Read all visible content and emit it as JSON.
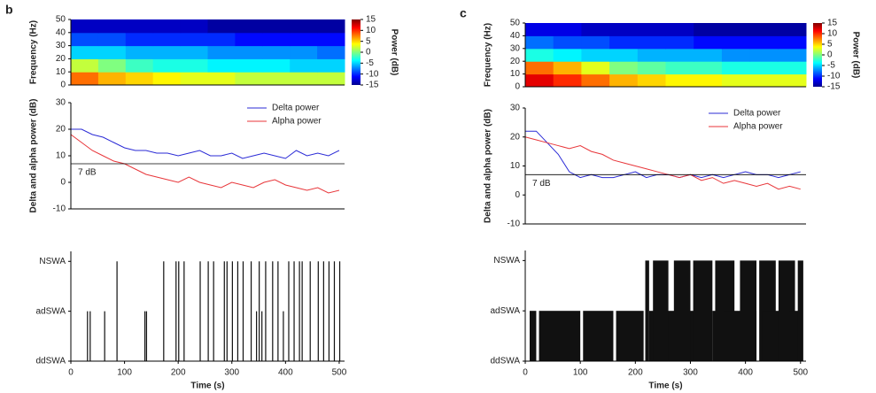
{
  "chart_data": [
    {
      "type": "heatmap",
      "panel": "b",
      "ylabel": "Frequency (Hz)",
      "x_bins": [
        0,
        51,
        102,
        153,
        204,
        255,
        306,
        357,
        408,
        459,
        510
      ],
      "y_bins": [
        0,
        10,
        20,
        30,
        40,
        50
      ],
      "values": [
        [
          8,
          6,
          5,
          4,
          3,
          3,
          2,
          2,
          2,
          2
        ],
        [
          2,
          0,
          -2,
          -3,
          -3,
          -4,
          -4,
          -4,
          -5,
          -5
        ],
        [
          -5,
          -5,
          -6,
          -6,
          -6,
          -7,
          -7,
          -7,
          -7,
          -8
        ],
        [
          -9,
          -9,
          -10,
          -10,
          -10,
          -10,
          -11,
          -11,
          -11,
          -11
        ],
        [
          -13,
          -13,
          -13,
          -13,
          -13,
          -14,
          -14,
          -14,
          -14,
          -14
        ]
      ],
      "xlim": [
        0,
        510
      ],
      "ylim": [
        0,
        50
      ],
      "yticks": [
        0,
        10,
        20,
        30,
        40,
        50
      ],
      "colorbar": {
        "label": "Power (dB)",
        "lim": [
          -15,
          15
        ],
        "ticks": [
          15,
          10,
          5,
          0,
          -5,
          -10,
          -15
        ]
      }
    },
    {
      "type": "line",
      "ylabel": "Delta and alpha power (dB)",
      "x": [
        0,
        20,
        40,
        60,
        80,
        100,
        120,
        140,
        160,
        180,
        200,
        220,
        240,
        260,
        280,
        300,
        320,
        340,
        360,
        380,
        400,
        420,
        440,
        460,
        480,
        500
      ],
      "series": [
        {
          "name": "Delta power",
          "color": "#2b2bd6",
          "values": [
            20,
            20,
            18,
            17,
            15,
            13,
            12,
            12,
            11,
            11,
            10,
            11,
            12,
            10,
            10,
            11,
            9,
            10,
            11,
            10,
            9,
            12,
            10,
            11,
            10,
            12
          ]
        },
        {
          "name": "Alpha power",
          "color": "#e8363a",
          "values": [
            18,
            15,
            12,
            10,
            8,
            7,
            5,
            3,
            2,
            1,
            0,
            2,
            0,
            -1,
            -2,
            0,
            -1,
            -2,
            0,
            1,
            -1,
            -2,
            -3,
            -2,
            -4,
            -3
          ]
        }
      ],
      "ref_line": {
        "value": 7,
        "label": "7 dB"
      },
      "xlim": [
        0,
        510
      ],
      "ylim": [
        -10,
        30
      ],
      "yticks": [
        -10,
        0,
        10,
        20,
        30
      ],
      "legend": "upper right"
    },
    {
      "type": "raster",
      "xlabel": "Time (s)",
      "starts": [
        30,
        35,
        62,
        85,
        137,
        140,
        172,
        195,
        200,
        210,
        240,
        255,
        265,
        285,
        290,
        300,
        310,
        320,
        335,
        345,
        350,
        355,
        362,
        375,
        385,
        395,
        405,
        415,
        425,
        430,
        445,
        460,
        470,
        480,
        490,
        500
      ],
      "ends": [
        32,
        37,
        64,
        87,
        139,
        142,
        174,
        197,
        202,
        212,
        242,
        257,
        267,
        287,
        292,
        302,
        312,
        322,
        337,
        347,
        352,
        357,
        364,
        377,
        387,
        397,
        407,
        417,
        427,
        432,
        447,
        462,
        472,
        482,
        492,
        502
      ],
      "values": [
        1,
        1,
        1,
        2,
        1,
        1,
        2,
        2,
        2,
        2,
        2,
        2,
        2,
        2,
        2,
        2,
        2,
        2,
        2,
        1,
        2,
        1,
        2,
        2,
        2,
        1,
        2,
        2,
        2,
        2,
        2,
        2,
        2,
        2,
        2,
        2
      ],
      "xlim": [
        0,
        510
      ],
      "xticks": [
        0,
        100,
        200,
        300,
        400,
        500
      ],
      "ylim": [
        0,
        2.2
      ],
      "yticks": [
        {
          "value": 0,
          "label": "ddSWA"
        },
        {
          "value": 1,
          "label": "adSWA"
        },
        {
          "value": 2,
          "label": "NSWA"
        }
      ]
    },
    {
      "type": "heatmap",
      "panel": "c",
      "ylabel": "Frequency (Hz)",
      "x_bins": [
        0,
        51,
        102,
        153,
        204,
        255,
        306,
        357,
        408,
        459,
        510
      ],
      "y_bins": [
        0,
        10,
        20,
        30,
        40,
        50
      ],
      "values": [
        [
          12,
          10,
          8,
          6,
          5,
          4,
          4,
          3,
          3,
          3
        ],
        [
          8,
          6,
          3,
          0,
          -1,
          -2,
          -2,
          -3,
          -3,
          -3
        ],
        [
          -3,
          -4,
          -5,
          -5,
          -6,
          -6,
          -6,
          -7,
          -7,
          -7
        ],
        [
          -8,
          -9,
          -9,
          -10,
          -10,
          -10,
          -11,
          -11,
          -11,
          -11
        ],
        [
          -12,
          -12,
          -13,
          -13,
          -13,
          -13,
          -14,
          -14,
          -14,
          -14
        ]
      ],
      "xlim": [
        0,
        510
      ],
      "ylim": [
        0,
        50
      ],
      "yticks": [
        0,
        10,
        20,
        30,
        40,
        50
      ],
      "colorbar": {
        "label": "Power (dB)",
        "lim": [
          -15,
          15
        ],
        "ticks": [
          15,
          10,
          5,
          0,
          -5,
          -10,
          -15
        ]
      }
    },
    {
      "type": "line",
      "ylabel": "Delta and alpha power (dB)",
      "x": [
        0,
        20,
        40,
        60,
        80,
        100,
        120,
        140,
        160,
        180,
        200,
        220,
        240,
        260,
        280,
        300,
        320,
        340,
        360,
        380,
        400,
        420,
        440,
        460,
        480,
        500
      ],
      "series": [
        {
          "name": "Delta power",
          "color": "#2b2bd6",
          "values": [
            22,
            22,
            18,
            14,
            8,
            6,
            7,
            6,
            6,
            7,
            8,
            6,
            7,
            7,
            6,
            7,
            6,
            7,
            6,
            7,
            8,
            7,
            7,
            6,
            7,
            8
          ]
        },
        {
          "name": "Alpha power",
          "color": "#e8363a",
          "values": [
            20,
            19,
            18,
            17,
            16,
            17,
            15,
            14,
            12,
            11,
            10,
            9,
            8,
            7,
            6,
            7,
            5,
            6,
            4,
            5,
            4,
            3,
            4,
            2,
            3,
            2
          ]
        }
      ],
      "ref_line": {
        "value": 7,
        "label": "7 dB"
      },
      "xlim": [
        0,
        510
      ],
      "ylim": [
        -10,
        30
      ],
      "yticks": [
        -10,
        0,
        10,
        20,
        30
      ],
      "legend": "upper right"
    },
    {
      "type": "raster",
      "xlabel": "Time (s)",
      "starts": [
        8,
        25,
        105,
        165,
        218,
        225,
        232,
        270,
        305,
        340,
        345,
        360,
        390,
        425,
        430,
        460,
        480,
        495
      ],
      "ends": [
        20,
        100,
        160,
        215,
        225,
        330,
        260,
        300,
        340,
        350,
        380,
        420,
        420,
        455,
        470,
        490,
        500,
        505
      ],
      "values": [
        1,
        1,
        1,
        1,
        2,
        1,
        2,
        2,
        2,
        1,
        2,
        1,
        2,
        2,
        1,
        2,
        1,
        2
      ],
      "xlim": [
        0,
        510
      ],
      "xticks": [
        0,
        100,
        200,
        300,
        400,
        500
      ],
      "ylim": [
        0,
        2.2
      ],
      "yticks": [
        {
          "value": 0,
          "label": "ddSWA"
        },
        {
          "value": 1,
          "label": "adSWA"
        },
        {
          "value": 2,
          "label": "NSWA"
        }
      ]
    }
  ]
}
